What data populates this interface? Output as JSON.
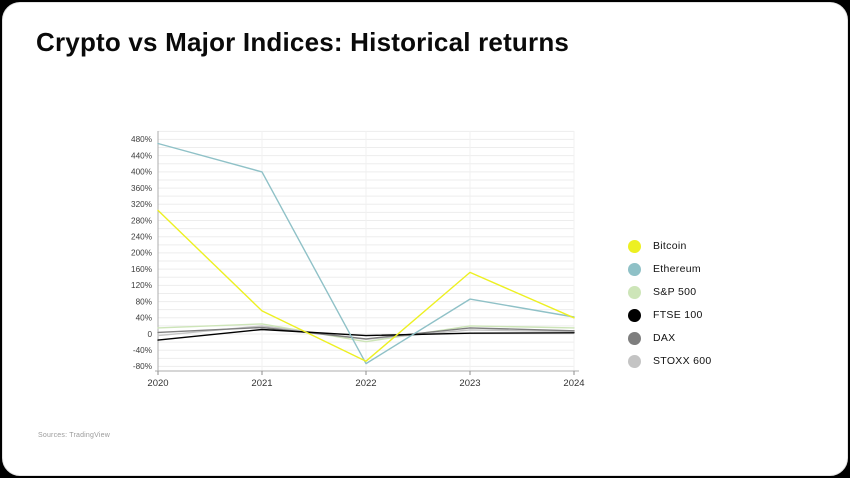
{
  "page": {
    "title": "Crypto vs Major Indices: Historical returns",
    "source": "Sources: TradingView"
  },
  "chart_data": {
    "type": "line",
    "title": "Crypto vs Major Indices: Historical returns",
    "xlabel": "",
    "ylabel": "",
    "categories": [
      "2020",
      "2021",
      "2022",
      "2023",
      "2024"
    ],
    "series": [
      {
        "name": "Bitcoin",
        "color": "#EDF022",
        "values": [
          305,
          57,
          -67,
          152,
          40
        ]
      },
      {
        "name": "Ethereum",
        "color": "#8FC1C7",
        "values": [
          470,
          400,
          -73,
          86,
          42
        ]
      },
      {
        "name": "S&P 500",
        "color": "#CDE5B8",
        "values": [
          15,
          25,
          -19,
          20,
          15
        ]
      },
      {
        "name": "FTSE 100",
        "color": "#000000",
        "values": [
          -15,
          11,
          -4,
          2,
          3
        ]
      },
      {
        "name": "DAX",
        "color": "#7E7E7E",
        "values": [
          4,
          16,
          -12,
          15,
          8
        ]
      },
      {
        "name": "STOXX 600",
        "color": "#C4C4C4",
        "values": [
          -4,
          20,
          -13,
          10,
          6
        ]
      }
    ],
    "ylim": [
      -80,
      500
    ],
    "y_tick_step": 40,
    "y_minor_step": 20,
    "y_tick_suffix": "%",
    "y_zero_label": "0",
    "grid": true,
    "legend_position": "right"
  }
}
